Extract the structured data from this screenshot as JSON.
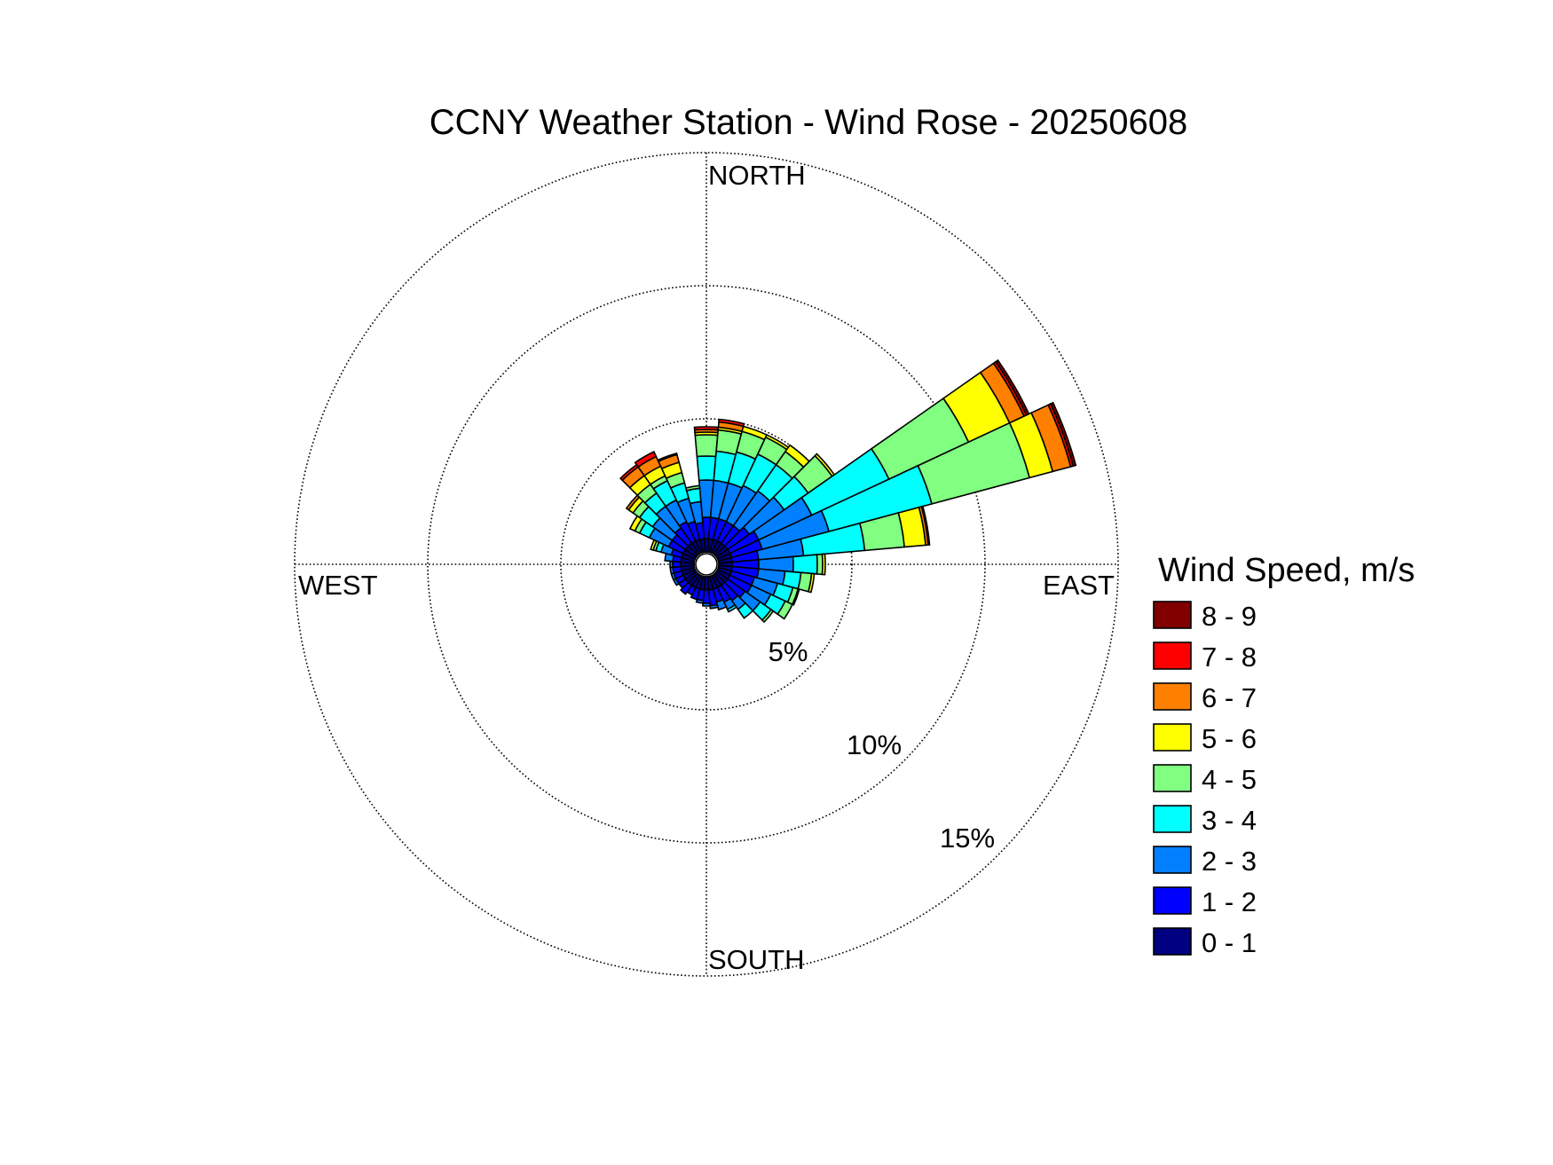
{
  "chart_data": {
    "type": "wind-rose",
    "title": "CCNY Weather Station - Wind Rose - 20250608",
    "directions": {
      "north": "NORTH",
      "south": "SOUTH",
      "east": "EAST",
      "west": "WEST"
    },
    "rings": [
      {
        "value": 5,
        "label": "5%"
      },
      {
        "value": 10,
        "label": "10%"
      },
      {
        "value": 15,
        "label": "15%"
      }
    ],
    "grid": true,
    "legend": {
      "title": "Wind Speed, m/s",
      "placement": "right",
      "bins": [
        {
          "label": "0 - 1",
          "color": "#000080"
        },
        {
          "label": "1 - 2",
          "color": "#0000ff"
        },
        {
          "label": "2 - 3",
          "color": "#0080ff"
        },
        {
          "label": "3 - 4",
          "color": "#00ffff"
        },
        {
          "label": "4 - 5",
          "color": "#80ff80"
        },
        {
          "label": "5 - 6",
          "color": "#ffff00"
        },
        {
          "label": "6 - 7",
          "color": "#ff8000"
        },
        {
          "label": "7 - 8",
          "color": "#ff0000"
        },
        {
          "label": "8 - 9",
          "color": "#800000"
        }
      ]
    },
    "sector_width_deg": 10,
    "sectors": [
      {
        "dir": 0,
        "values": [
          0.5,
          0.8,
          1.4,
          0.9,
          0.8,
          0.1,
          0.1,
          0.1,
          0
        ]
      },
      {
        "dir": 10,
        "values": [
          0.5,
          0.8,
          1.4,
          1.1,
          0.8,
          0.1,
          0.2,
          0.1,
          0
        ]
      },
      {
        "dir": 20,
        "values": [
          0.5,
          0.8,
          1.4,
          1.2,
          0.8,
          0.2,
          0,
          0,
          0
        ]
      },
      {
        "dir": 30,
        "values": [
          0.5,
          0.8,
          1.5,
          1.3,
          0.7,
          0.1,
          0,
          0,
          0
        ]
      },
      {
        "dir": 40,
        "values": [
          0.5,
          0.8,
          1.6,
          1.2,
          0.6,
          0.3,
          0,
          0,
          0
        ]
      },
      {
        "dir": 50,
        "values": [
          0.5,
          1.0,
          1.6,
          1.1,
          1.1,
          0.1,
          0,
          0,
          0
        ]
      },
      {
        "dir": 60,
        "values": [
          0.5,
          1.2,
          2.2,
          3.2,
          3.3,
          1.7,
          0.6,
          0.1,
          0.1
        ]
      },
      {
        "dir": 70,
        "values": [
          0.5,
          1.2,
          2.6,
          4.0,
          3.8,
          0.9,
          0.7,
          0.1,
          0.1
        ]
      },
      {
        "dir": 80,
        "values": [
          0.5,
          1.0,
          1.7,
          2.3,
          1.5,
          0.8,
          0.1,
          0.05,
          0
        ]
      },
      {
        "dir": 90,
        "values": [
          0.5,
          1.0,
          1.3,
          0.9,
          0.2,
          0.1,
          0,
          0,
          0
        ]
      },
      {
        "dir": 100,
        "values": [
          0.5,
          1.0,
          1.0,
          0.6,
          0.4,
          0.1,
          0,
          0,
          0
        ]
      },
      {
        "dir": 110,
        "values": [
          0.5,
          0.9,
          0.9,
          0.6,
          0.2,
          0.05,
          0,
          0,
          0
        ]
      },
      {
        "dir": 120,
        "values": [
          0.5,
          0.9,
          0.8,
          0.6,
          0.3,
          0,
          0,
          0,
          0
        ]
      },
      {
        "dir": 130,
        "values": [
          0.5,
          0.8,
          0.7,
          0.5,
          0.1,
          0,
          0,
          0,
          0
        ]
      },
      {
        "dir": 140,
        "values": [
          0.5,
          0.7,
          0.4,
          0.4,
          0,
          0,
          0,
          0,
          0
        ]
      },
      {
        "dir": 150,
        "values": [
          0.5,
          0.6,
          0.3,
          0.1,
          0,
          0,
          0,
          0,
          0
        ]
      },
      {
        "dir": 160,
        "values": [
          0.5,
          0.5,
          0.3,
          0,
          0,
          0,
          0,
          0,
          0
        ]
      },
      {
        "dir": 170,
        "values": [
          0.5,
          0.6,
          0.1,
          0,
          0,
          0,
          0,
          0,
          0
        ]
      },
      {
        "dir": 180,
        "values": [
          0.5,
          0.5,
          0.1,
          0,
          0,
          0,
          0,
          0,
          0
        ]
      },
      {
        "dir": 190,
        "values": [
          0.5,
          0.4,
          0.1,
          0,
          0,
          0,
          0,
          0,
          0
        ]
      },
      {
        "dir": 200,
        "values": [
          0.5,
          0.4,
          0,
          0,
          0,
          0,
          0,
          0,
          0
        ]
      },
      {
        "dir": 210,
        "values": [
          0.5,
          0.3,
          0,
          0,
          0,
          0,
          0,
          0,
          0
        ]
      },
      {
        "dir": 220,
        "values": [
          0.5,
          0.4,
          0,
          0,
          0,
          0,
          0,
          0,
          0
        ]
      },
      {
        "dir": 230,
        "values": [
          0.5,
          0.3,
          0,
          0,
          0,
          0,
          0,
          0,
          0
        ]
      },
      {
        "dir": 240,
        "values": [
          0.5,
          0.3,
          0.1,
          0,
          0,
          0,
          0,
          0,
          0
        ]
      },
      {
        "dir": 250,
        "values": [
          0.5,
          0.3,
          0.1,
          0,
          0,
          0,
          0,
          0,
          0
        ]
      },
      {
        "dir": 260,
        "values": [
          0.5,
          0.3,
          0.1,
          0,
          0,
          0,
          0,
          0,
          0
        ]
      },
      {
        "dir": 270,
        "values": [
          0.5,
          0.3,
          0.1,
          0,
          0,
          0,
          0,
          0,
          0
        ]
      },
      {
        "dir": 280,
        "values": [
          0.5,
          0.3,
          0.3,
          0,
          0,
          0,
          0,
          0,
          0
        ]
      },
      {
        "dir": 290,
        "values": [
          0.5,
          0.4,
          0.4,
          0.2,
          0.1,
          0.1,
          0,
          0,
          0
        ]
      },
      {
        "dir": 300,
        "values": [
          0.5,
          0.6,
          0.8,
          0.4,
          0.2,
          0.2,
          0,
          0,
          0
        ]
      },
      {
        "dir": 310,
        "values": [
          0.5,
          0.6,
          0.9,
          0.6,
          0.3,
          0.2,
          0.1,
          0,
          0
        ]
      },
      {
        "dir": 320,
        "values": [
          0.5,
          0.7,
          1.0,
          0.6,
          0.4,
          0.4,
          0.4,
          0.1,
          0
        ]
      },
      {
        "dir": 330,
        "values": [
          0.5,
          0.8,
          0.9,
          0.8,
          0.2,
          0.4,
          0.4,
          0.2,
          0
        ]
      },
      {
        "dir": 340,
        "values": [
          0.5,
          0.7,
          0.9,
          0.6,
          0.4,
          0.4,
          0.3,
          0.05,
          0
        ]
      },
      {
        "dir": 350,
        "values": [
          0.5,
          0.6,
          0.8,
          0.5,
          0.1,
          0,
          0,
          0,
          0
        ]
      }
    ]
  }
}
